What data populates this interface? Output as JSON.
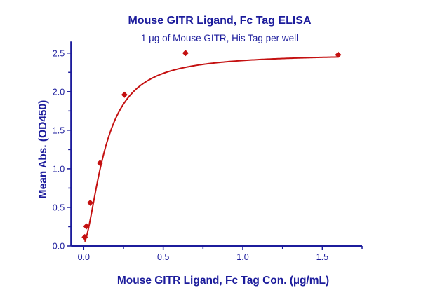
{
  "chart_data": {
    "type": "scatter",
    "title": "Mouse GITR Ligand, Fc Tag ELISA",
    "subtitle": "1 µg of Mouse GITR, His Tag per well",
    "xlabel": "Mouse GITR Ligand, Fc Tag Con. (µg/mL)",
    "ylabel": "Mean Abs. (OD450)",
    "xlim": [
      -0.08,
      1.75
    ],
    "ylim": [
      0,
      2.65
    ],
    "xticks": [
      "0.0",
      "0.5",
      "1.0",
      "1.5"
    ],
    "yticks": [
      "0.0",
      "0.5",
      "1.0",
      "1.5",
      "2.0",
      "2.5"
    ],
    "grid": false,
    "series": [
      {
        "x": [
          0.0066,
          0.0164,
          0.041,
          0.1024,
          0.256,
          0.64,
          1.6
        ],
        "y": [
          0.115,
          0.254,
          0.56,
          1.075,
          1.96,
          2.5,
          2.477
        ],
        "marker": "diamond",
        "fit_line": true
      }
    ],
    "colors": {
      "axis": "#1c1c9c",
      "data": "#c41010",
      "fit": "#c41010"
    }
  }
}
